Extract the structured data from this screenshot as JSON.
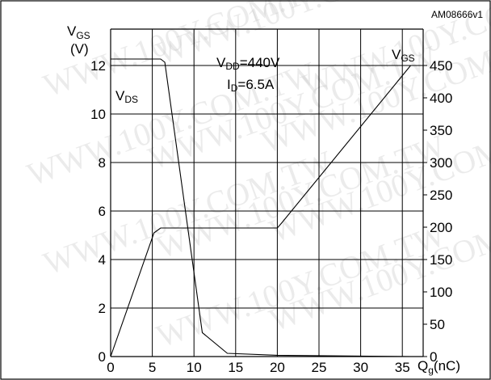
{
  "figure_id": "AM08666v1",
  "watermark": "WWW.100Y.COM.TW",
  "chart_data": {
    "type": "line",
    "x": {
      "label_main": "Q",
      "label_sub": "g",
      "label_unit": "(nC)",
      "range": [
        0,
        37.5
      ],
      "ticks": [
        0,
        5,
        10,
        15,
        20,
        25,
        30,
        35
      ]
    },
    "y_left": {
      "label_main": "V",
      "label_sub": "GS",
      "label_unit": "(V)",
      "range": [
        0,
        13.5
      ],
      "ticks": [
        0,
        2,
        4,
        6,
        8,
        10,
        12
      ]
    },
    "y_right": {
      "range": [
        0,
        506.25
      ],
      "ticks": [
        0,
        50,
        100,
        150,
        200,
        250,
        300,
        350,
        400,
        450
      ]
    },
    "annotation_conditions": {
      "vdd_main": "V",
      "vdd_sub": "DD",
      "vdd_value": "=440V",
      "id_main": "I",
      "id_sub": "D",
      "id_value": "=6.5A"
    },
    "series": [
      {
        "name_main": "V",
        "name_sub": "GS",
        "axis": "left",
        "x": [
          0,
          5.2,
          6.0,
          20.0,
          20.5,
          36.0
        ],
        "y": [
          0,
          5.1,
          5.3,
          5.3,
          5.5,
          12.0
        ]
      },
      {
        "name_main": "V",
        "name_sub": "DS",
        "axis": "right",
        "x": [
          0,
          6.0,
          6.5,
          11.0,
          14.0,
          20.0,
          36.0
        ],
        "y": [
          460,
          460,
          455,
          37,
          5,
          2,
          0
        ]
      }
    ]
  }
}
